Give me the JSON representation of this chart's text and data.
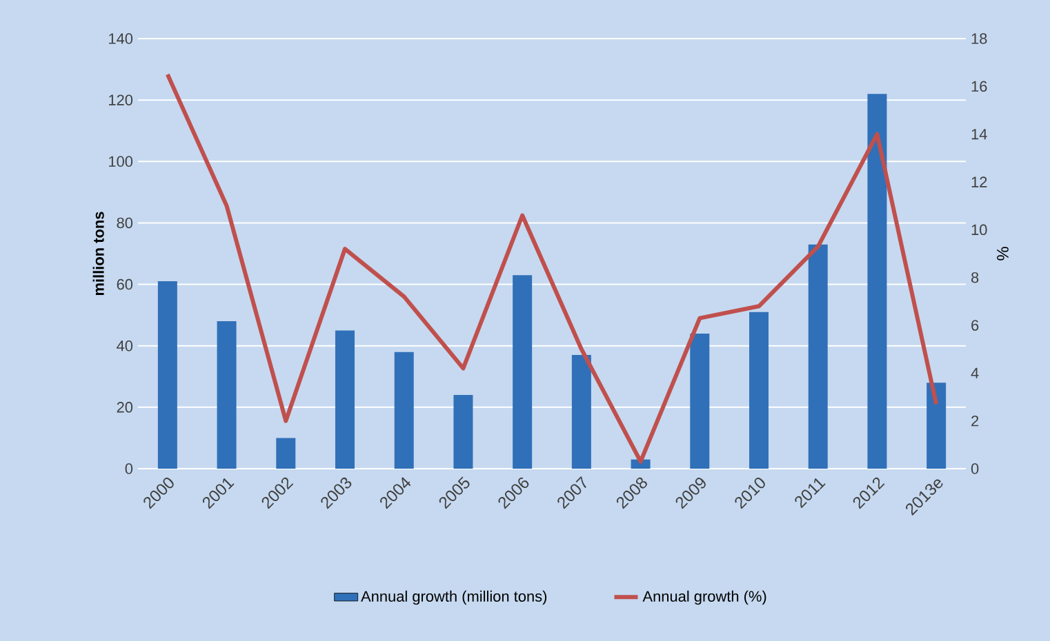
{
  "chart_data": {
    "type": "bar",
    "categories": [
      "2000",
      "2001",
      "2002",
      "2003",
      "2004",
      "2005",
      "2006",
      "2007",
      "2008",
      "2009",
      "2010",
      "2011",
      "2012",
      "2013e"
    ],
    "series": [
      {
        "name": "Annual growth (million tons)",
        "color": "#3070b8",
        "values": [
          61,
          48,
          10,
          45,
          38,
          24,
          63,
          37,
          3,
          44,
          51,
          73,
          122,
          28
        ]
      },
      {
        "name": "Annual growth (%)",
        "type": "line",
        "axis": "y2",
        "color": "#c0504d",
        "values": [
          16.5,
          11,
          2,
          9.2,
          7.2,
          4.2,
          10.6,
          5,
          0.3,
          6.3,
          6.8,
          9.3,
          14,
          2.7
        ]
      }
    ],
    "ylabel": "million tons",
    "y2label": "%",
    "ylim": [
      0,
      140
    ],
    "yticks": [
      0,
      20,
      40,
      60,
      80,
      100,
      120,
      140
    ],
    "y2lim": [
      0,
      18
    ],
    "y2ticks": [
      0,
      2,
      4,
      6,
      8,
      10,
      12,
      14,
      16,
      18
    ],
    "grid": "y",
    "legend": "bottom"
  }
}
